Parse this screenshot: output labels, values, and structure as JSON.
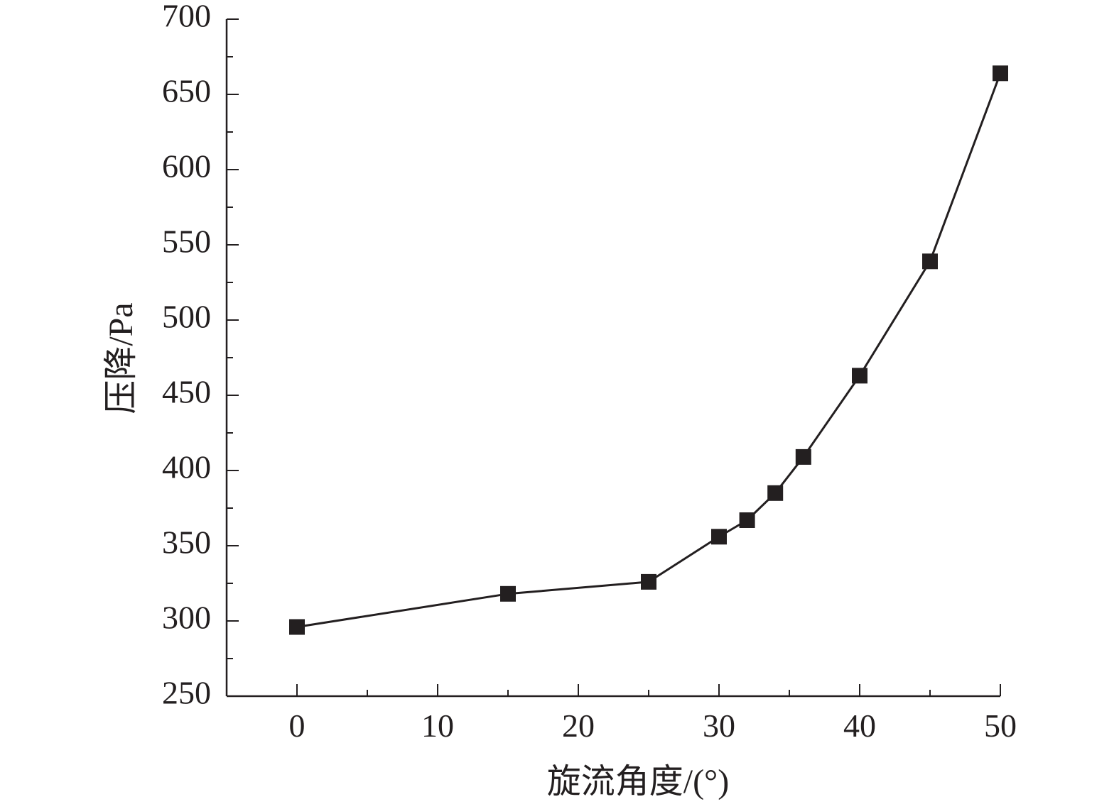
{
  "chart_data": {
    "type": "line",
    "title": "",
    "xlabel": "旋流角度/(°)",
    "ylabel": "压降/Pa",
    "xlim": [
      -5,
      50
    ],
    "ylim": [
      250,
      700
    ],
    "xticks": [
      0,
      10,
      20,
      30,
      40,
      50
    ],
    "yticks": [
      250,
      300,
      350,
      400,
      450,
      500,
      550,
      600,
      650,
      700
    ],
    "grid": false,
    "legend": "none",
    "colors": {
      "line": "#231f20",
      "marker": "#231f20",
      "axis": "#231f20"
    },
    "marker": "square",
    "series": [
      {
        "x": [
          0,
          15,
          25,
          30,
          32,
          34,
          36,
          40,
          45,
          50
        ],
        "y": [
          296,
          318,
          326,
          356,
          367,
          385,
          409,
          463,
          539,
          664
        ]
      }
    ]
  }
}
